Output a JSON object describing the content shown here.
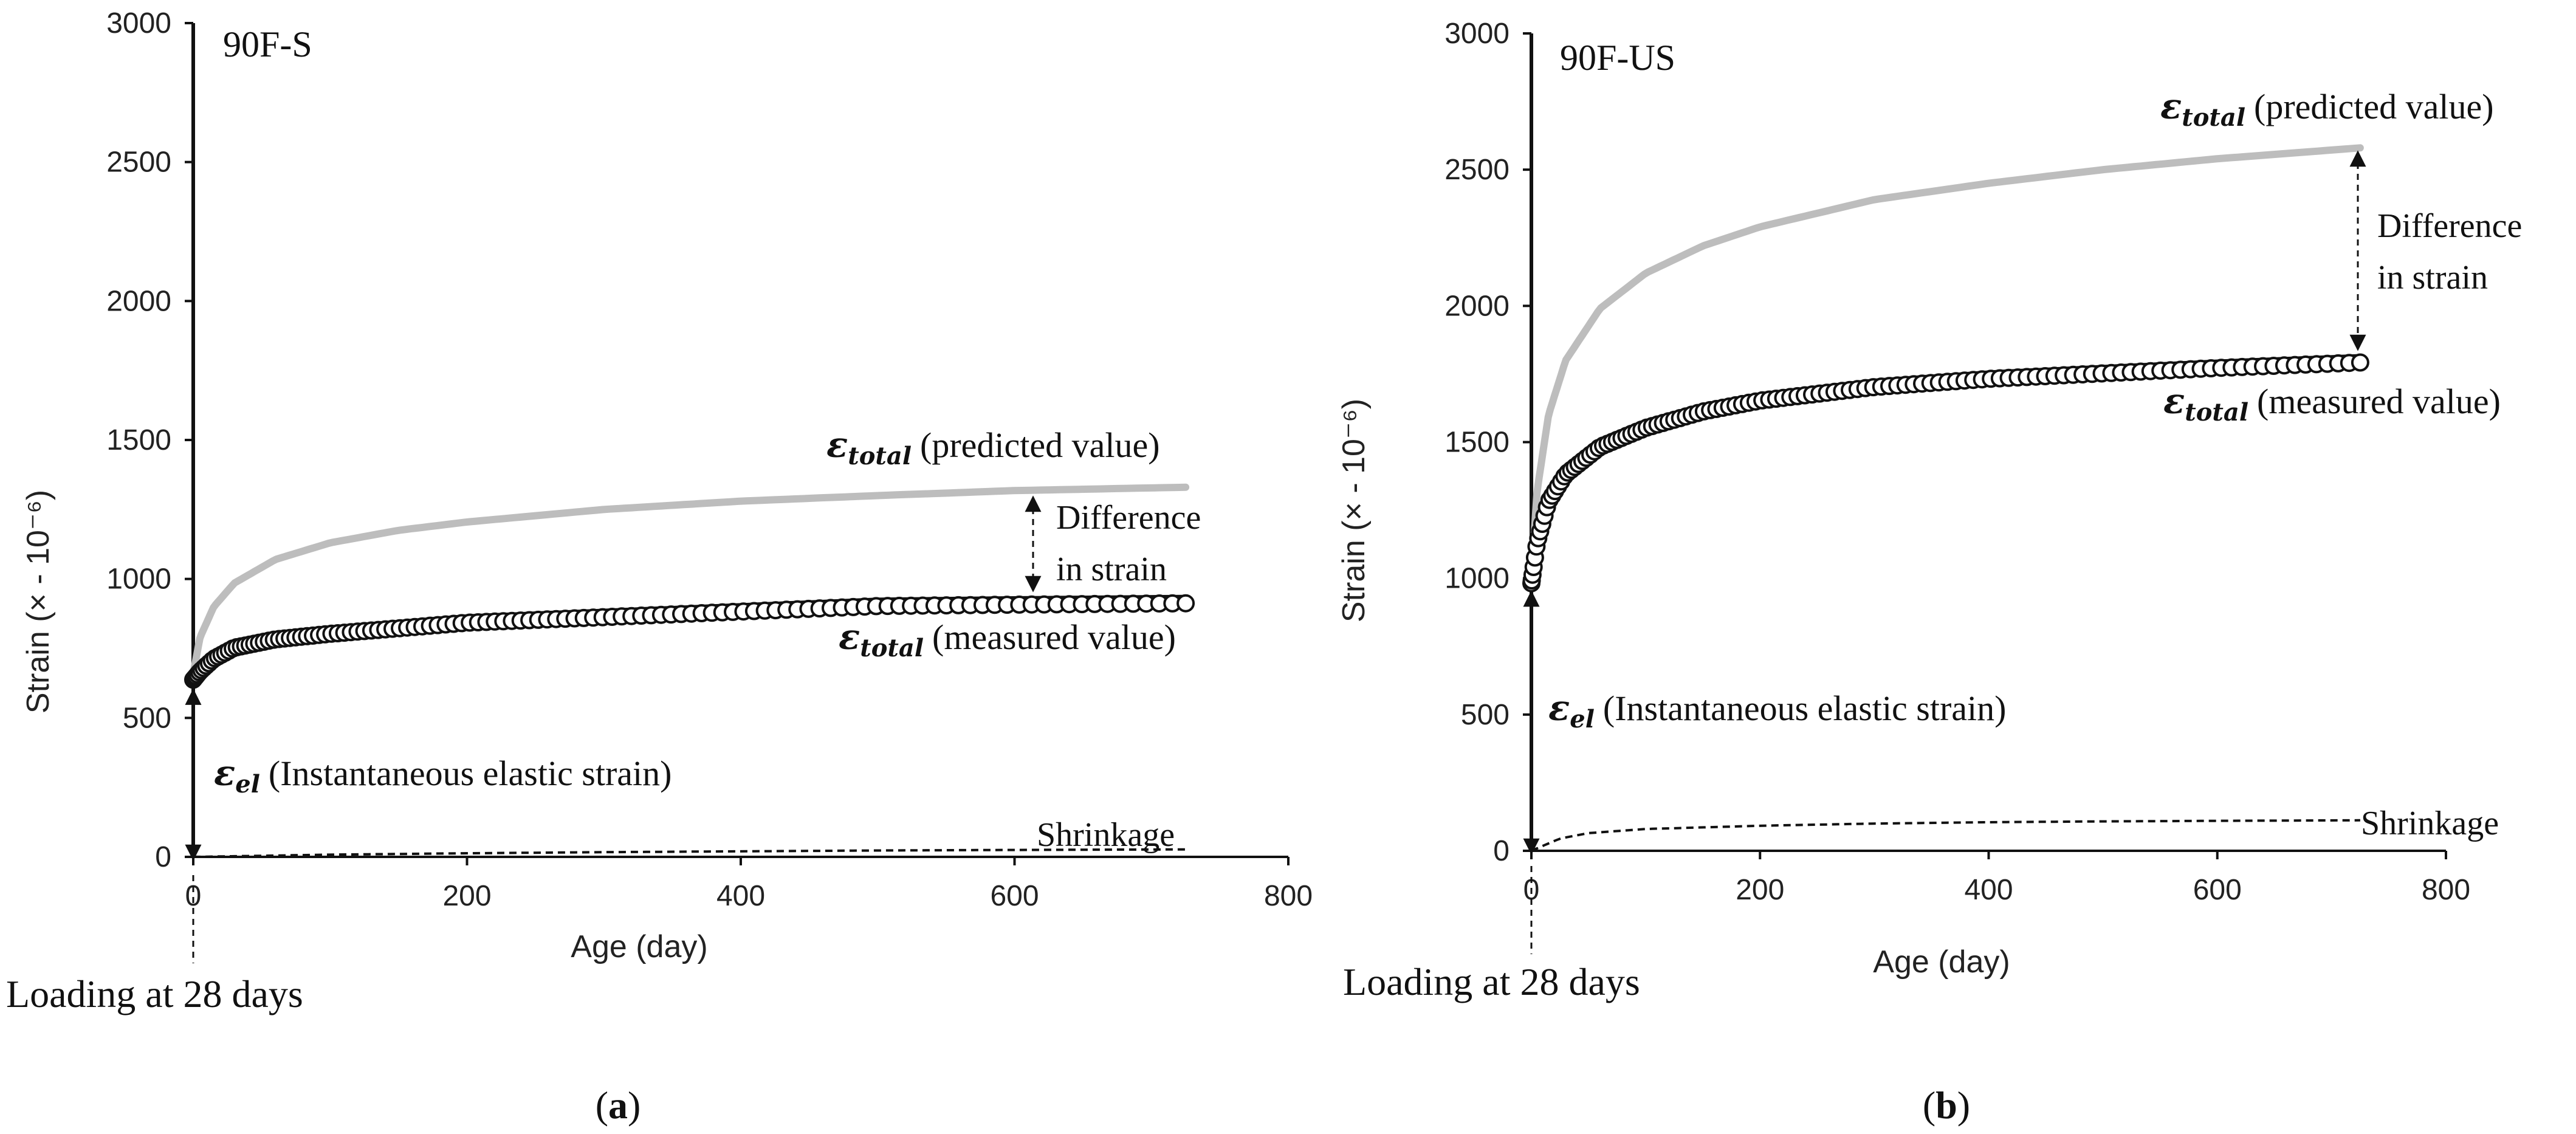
{
  "chart_data": [
    {
      "type": "line",
      "title": "90F-S",
      "xlabel": "Age (day)",
      "ylabel": "Strain (× - 10⁻⁶)",
      "xlim": [
        0,
        800
      ],
      "ylim": [
        0,
        3000
      ],
      "xticks": [
        "0",
        "200",
        "400",
        "600",
        "800"
      ],
      "yticks": [
        "0",
        "500",
        "1000",
        "1500",
        "2000",
        "2500",
        "3000"
      ],
      "series": [
        {
          "name": "ε_total (predicted value)",
          "style": "gray-line",
          "x": [
            0,
            5,
            15,
            30,
            60,
            100,
            150,
            200,
            300,
            400,
            500,
            600,
            725
          ],
          "y": [
            660,
            790,
            900,
            985,
            1070,
            1130,
            1175,
            1205,
            1250,
            1280,
            1300,
            1318,
            1330
          ]
        },
        {
          "name": "ε_total (measured value)",
          "style": "circle-markers",
          "x": [
            0,
            5,
            15,
            30,
            60,
            100,
            150,
            200,
            300,
            400,
            500,
            600,
            725
          ],
          "y": [
            655,
            685,
            730,
            770,
            800,
            820,
            840,
            860,
            880,
            900,
            920,
            925,
            930
          ]
        },
        {
          "name": "Shrinkage",
          "style": "dashed-line",
          "x": [
            0,
            50,
            100,
            200,
            300,
            400,
            500,
            600,
            725
          ],
          "y": [
            0,
            4,
            8,
            13,
            17,
            20,
            23,
            25,
            27
          ]
        }
      ],
      "annotations": {
        "predicted_sym": "ε",
        "predicted_sub": "total",
        "predicted_text": "(predicted value)",
        "measured_sym": "ε",
        "measured_sub": "total",
        "measured_text": "(measured value)",
        "difference_line1": "Difference",
        "difference_line2": "in strain",
        "elastic_sym": "ε",
        "elastic_sub": "el",
        "elastic_text": "(Instantaneous elastic strain)",
        "shrinkage": "Shrinkage",
        "loading": "Loading at 28 days",
        "elastic_value": 600
      },
      "panel_label": "a"
    },
    {
      "type": "line",
      "title": "90F-US",
      "xlabel": "Age (day)",
      "ylabel": "Strain (× - 10⁻⁶)",
      "xlim": [
        0,
        800
      ],
      "ylim": [
        0,
        3000
      ],
      "xticks": [
        "0",
        "200",
        "400",
        "600",
        "800"
      ],
      "yticks": [
        "0",
        "500",
        "1000",
        "1500",
        "2000",
        "2500",
        "3000"
      ],
      "series": [
        {
          "name": "ε_total (predicted value)",
          "style": "gray-line",
          "x": [
            0,
            5,
            15,
            30,
            60,
            100,
            150,
            200,
            300,
            400,
            500,
            600,
            725
          ],
          "y": [
            1000,
            1320,
            1600,
            1800,
            1990,
            2120,
            2220,
            2290,
            2390,
            2450,
            2500,
            2540,
            2580
          ]
        },
        {
          "name": "ε_total (measured value)",
          "style": "circle-markers",
          "x": [
            0,
            5,
            15,
            30,
            60,
            100,
            150,
            200,
            300,
            400,
            500,
            600,
            725
          ],
          "y": [
            1000,
            1150,
            1300,
            1400,
            1500,
            1570,
            1630,
            1670,
            1720,
            1750,
            1770,
            1790,
            1810
          ]
        },
        {
          "name": "Shrinkage",
          "style": "dashed-line",
          "x": [
            0,
            25,
            50,
            100,
            200,
            300,
            400,
            500,
            600,
            725
          ],
          "y": [
            0,
            45,
            65,
            80,
            92,
            100,
            105,
            108,
            110,
            112
          ]
        }
      ],
      "annotations": {
        "predicted_sym": "ε",
        "predicted_sub": "total",
        "predicted_text": "(predicted value)",
        "measured_sym": "ε",
        "measured_sub": "total",
        "measured_text": "(measured value)",
        "difference_line1": "Difference",
        "difference_line2": "in strain",
        "elastic_sym": "ε",
        "elastic_sub": "el",
        "elastic_text": "(Instantaneous elastic strain)",
        "shrinkage": "Shrinkage",
        "loading": "Loading at 28 days",
        "elastic_value": 950
      },
      "panel_label": "b"
    }
  ],
  "labels": {
    "open_paren": "(",
    "close_paren": ")"
  }
}
